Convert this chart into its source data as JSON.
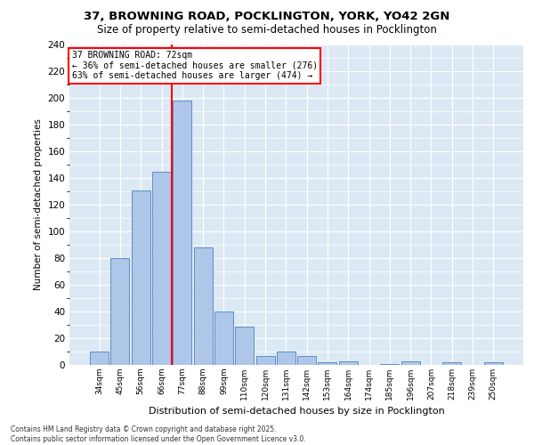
{
  "title1": "37, BROWNING ROAD, POCKLINGTON, YORK, YO42 2GN",
  "title2": "Size of property relative to semi-detached houses in Pocklington",
  "xlabel": "Distribution of semi-detached houses by size in Pocklington",
  "ylabel": "Number of semi-detached properties",
  "categories": [
    "34sqm",
    "45sqm",
    "56sqm",
    "66sqm",
    "77sqm",
    "88sqm",
    "99sqm",
    "110sqm",
    "120sqm",
    "131sqm",
    "142sqm",
    "153sqm",
    "164sqm",
    "174sqm",
    "185sqm",
    "196sqm",
    "207sqm",
    "218sqm",
    "239sqm",
    "250sqm"
  ],
  "values": [
    10,
    80,
    131,
    145,
    198,
    88,
    40,
    29,
    7,
    10,
    7,
    2,
    3,
    0,
    1,
    3,
    0,
    2,
    0,
    2
  ],
  "bar_color": "#aec6e8",
  "bar_edge_color": "#5b8fc9",
  "bg_color": "#dce9f5",
  "property_bin_index": 3,
  "redline_label": "37 BROWNING ROAD: 72sqm",
  "annotation_smaller": "← 36% of semi-detached houses are smaller (276)",
  "annotation_larger": "63% of semi-detached houses are larger (474) →",
  "footer": "Contains HM Land Registry data © Crown copyright and database right 2025.\nContains public sector information licensed under the Open Government Licence v3.0.",
  "ylim": [
    0,
    240
  ],
  "yticks": [
    0,
    20,
    40,
    60,
    80,
    100,
    120,
    140,
    160,
    180,
    200,
    220,
    240
  ]
}
